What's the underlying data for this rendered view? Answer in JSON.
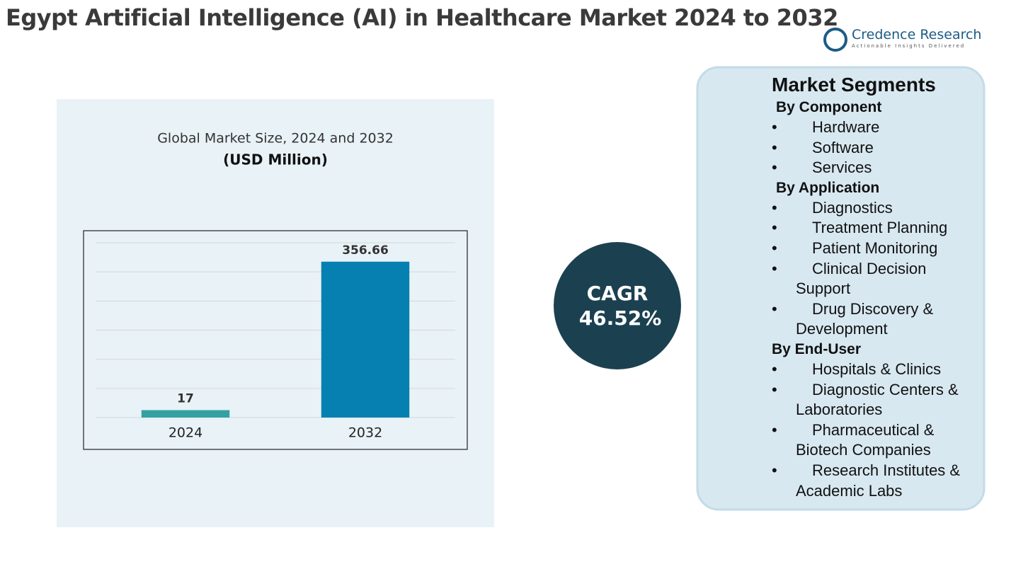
{
  "header": {
    "title": "Egypt Artificial Intelligence (AI) in Healthcare Market 2024 to 2032"
  },
  "brand": {
    "name": "Credence Research",
    "tagline": "Actionable Insights Delivered"
  },
  "chart_data": {
    "type": "bar",
    "title": "Global Market Size, 2024 and 2032",
    "subtitle": "(USD Million)",
    "categories": [
      "2024",
      "2032"
    ],
    "values": [
      17,
      356.66
    ],
    "colors": [
      "#33a1a1",
      "#0580b0"
    ],
    "ylim": [
      0,
      400
    ],
    "grid": true
  },
  "cagr": {
    "label": "CAGR",
    "value": "46.52%"
  },
  "segments": {
    "title": "Market Segments",
    "groups": [
      {
        "name": "By Component",
        "items": [
          "Hardware",
          "Software",
          "Services"
        ]
      },
      {
        "name": "By Application",
        "items": [
          "Diagnostics",
          "Treatment Planning",
          "Patient Monitoring",
          "Clinical Decision Support",
          "Drug Discovery & Development"
        ]
      },
      {
        "name": "By End-User",
        "items": [
          "Hospitals & Clinics",
          "Diagnostic Centers & Laboratories",
          "Pharmaceutical & Biotech Companies",
          "Research Institutes & Academic Labs"
        ]
      }
    ]
  }
}
